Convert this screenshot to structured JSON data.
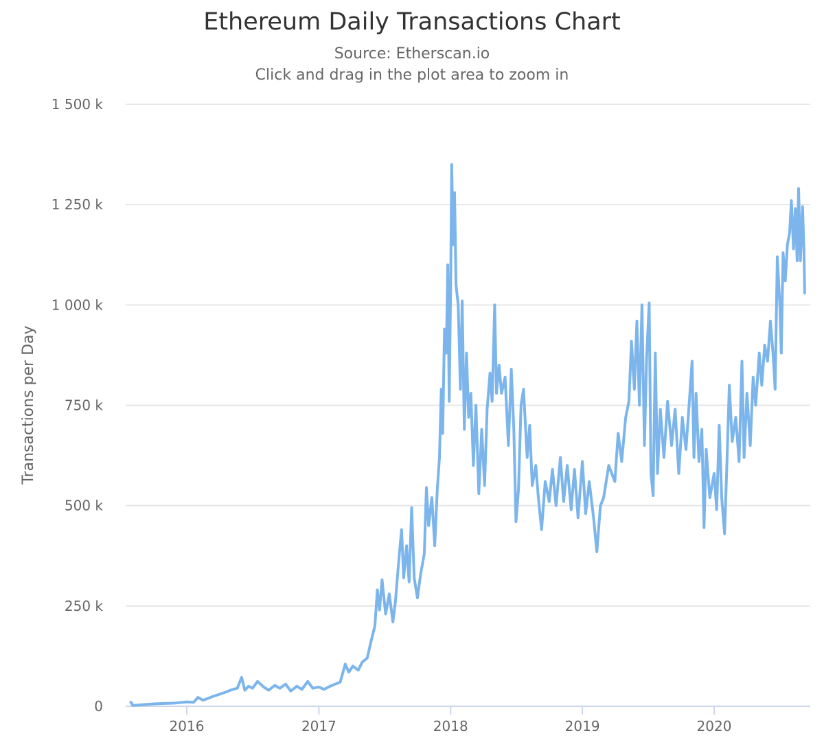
{
  "chart_data": {
    "type": "line",
    "title": "Ethereum Daily Transactions Chart",
    "subtitle": "Source: Etherscan.io",
    "subtitle2": "Click and drag in the plot area to zoom in",
    "xlabel": "",
    "ylabel": "Transactions per Day",
    "ylim": [
      0,
      1500
    ],
    "xlim": [
      "2015-07-30",
      "2020-09-08"
    ],
    "y_ticks": [
      0,
      250,
      500,
      750,
      1000,
      1250,
      1500
    ],
    "y_tick_labels": [
      "0",
      "250 k",
      "500 k",
      "750 k",
      "1 000 k",
      "1 250 k",
      "1 500 k"
    ],
    "x_ticks": [
      "2016-01-01",
      "2017-01-01",
      "2018-01-01",
      "2019-01-01",
      "2020-01-01"
    ],
    "x_tick_labels": [
      "2016",
      "2017",
      "2018",
      "2019",
      "2020"
    ],
    "grid": "horizontal",
    "legend": "none",
    "line_color": "#7cb5ec",
    "series": [
      {
        "points": [
          [
            "2015-07-30",
            10
          ],
          [
            "2015-08-05",
            2
          ],
          [
            "2015-09-01",
            4
          ],
          [
            "2015-10-01",
            6
          ],
          [
            "2015-11-01",
            7
          ],
          [
            "2015-12-01",
            8
          ],
          [
            "2016-01-01",
            11
          ],
          [
            "2016-01-20",
            10
          ],
          [
            "2016-02-01",
            22
          ],
          [
            "2016-02-15",
            15
          ],
          [
            "2016-03-01",
            20
          ],
          [
            "2016-03-15",
            25
          ],
          [
            "2016-04-01",
            30
          ],
          [
            "2016-04-20",
            36
          ],
          [
            "2016-05-01",
            40
          ],
          [
            "2016-05-20",
            45
          ],
          [
            "2016-06-01",
            72
          ],
          [
            "2016-06-10",
            40
          ],
          [
            "2016-06-20",
            50
          ],
          [
            "2016-07-01",
            45
          ],
          [
            "2016-07-15",
            62
          ],
          [
            "2016-08-01",
            48
          ],
          [
            "2016-08-15",
            40
          ],
          [
            "2016-09-01",
            52
          ],
          [
            "2016-09-15",
            45
          ],
          [
            "2016-10-01",
            55
          ],
          [
            "2016-10-15",
            38
          ],
          [
            "2016-11-01",
            50
          ],
          [
            "2016-11-15",
            42
          ],
          [
            "2016-12-01",
            62
          ],
          [
            "2016-12-15",
            45
          ],
          [
            "2017-01-01",
            48
          ],
          [
            "2017-01-15",
            42
          ],
          [
            "2017-02-01",
            50
          ],
          [
            "2017-02-15",
            55
          ],
          [
            "2017-03-01",
            60
          ],
          [
            "2017-03-15",
            105
          ],
          [
            "2017-03-25",
            85
          ],
          [
            "2017-04-05",
            100
          ],
          [
            "2017-04-20",
            90
          ],
          [
            "2017-05-01",
            110
          ],
          [
            "2017-05-15",
            120
          ],
          [
            "2017-05-25",
            160
          ],
          [
            "2017-06-05",
            200
          ],
          [
            "2017-06-12",
            290
          ],
          [
            "2017-06-18",
            240
          ],
          [
            "2017-06-25",
            315
          ],
          [
            "2017-07-05",
            230
          ],
          [
            "2017-07-15",
            280
          ],
          [
            "2017-07-25",
            210
          ],
          [
            "2017-08-01",
            260
          ],
          [
            "2017-08-10",
            360
          ],
          [
            "2017-08-18",
            440
          ],
          [
            "2017-08-24",
            320
          ],
          [
            "2017-09-01",
            400
          ],
          [
            "2017-09-08",
            310
          ],
          [
            "2017-09-15",
            495
          ],
          [
            "2017-09-22",
            320
          ],
          [
            "2017-10-01",
            270
          ],
          [
            "2017-10-10",
            330
          ],
          [
            "2017-10-20",
            380
          ],
          [
            "2017-10-26",
            545
          ],
          [
            "2017-11-01",
            450
          ],
          [
            "2017-11-10",
            520
          ],
          [
            "2017-11-18",
            400
          ],
          [
            "2017-11-25",
            540
          ],
          [
            "2017-12-01",
            620
          ],
          [
            "2017-12-06",
            790
          ],
          [
            "2017-12-10",
            680
          ],
          [
            "2017-12-15",
            940
          ],
          [
            "2017-12-20",
            880
          ],
          [
            "2017-12-24",
            1100
          ],
          [
            "2017-12-28",
            760
          ],
          [
            "2018-01-01",
            1050
          ],
          [
            "2018-01-04",
            1350
          ],
          [
            "2018-01-08",
            1150
          ],
          [
            "2018-01-12",
            1280
          ],
          [
            "2018-01-16",
            1050
          ],
          [
            "2018-01-22",
            1000
          ],
          [
            "2018-01-28",
            790
          ],
          [
            "2018-02-02",
            1010
          ],
          [
            "2018-02-08",
            690
          ],
          [
            "2018-02-14",
            880
          ],
          [
            "2018-02-20",
            720
          ],
          [
            "2018-02-26",
            780
          ],
          [
            "2018-03-05",
            600
          ],
          [
            "2018-03-12",
            750
          ],
          [
            "2018-03-20",
            530
          ],
          [
            "2018-03-28",
            690
          ],
          [
            "2018-04-05",
            550
          ],
          [
            "2018-04-12",
            740
          ],
          [
            "2018-04-20",
            830
          ],
          [
            "2018-04-26",
            760
          ],
          [
            "2018-05-03",
            1000
          ],
          [
            "2018-05-08",
            780
          ],
          [
            "2018-05-15",
            850
          ],
          [
            "2018-05-22",
            780
          ],
          [
            "2018-06-01",
            820
          ],
          [
            "2018-06-10",
            650
          ],
          [
            "2018-06-18",
            840
          ],
          [
            "2018-06-25",
            690
          ],
          [
            "2018-07-01",
            460
          ],
          [
            "2018-07-08",
            540
          ],
          [
            "2018-07-15",
            750
          ],
          [
            "2018-07-22",
            790
          ],
          [
            "2018-08-01",
            620
          ],
          [
            "2018-08-08",
            700
          ],
          [
            "2018-08-15",
            550
          ],
          [
            "2018-08-25",
            600
          ],
          [
            "2018-09-01",
            520
          ],
          [
            "2018-09-10",
            440
          ],
          [
            "2018-09-20",
            560
          ],
          [
            "2018-10-01",
            510
          ],
          [
            "2018-10-10",
            590
          ],
          [
            "2018-10-20",
            500
          ],
          [
            "2018-11-01",
            620
          ],
          [
            "2018-11-10",
            510
          ],
          [
            "2018-11-20",
            600
          ],
          [
            "2018-12-01",
            490
          ],
          [
            "2018-12-10",
            590
          ],
          [
            "2018-12-20",
            470
          ],
          [
            "2019-01-01",
            610
          ],
          [
            "2019-01-10",
            480
          ],
          [
            "2019-01-20",
            560
          ],
          [
            "2019-02-01",
            470
          ],
          [
            "2019-02-10",
            385
          ],
          [
            "2019-02-20",
            500
          ],
          [
            "2019-03-01",
            520
          ],
          [
            "2019-03-15",
            600
          ],
          [
            "2019-04-01",
            560
          ],
          [
            "2019-04-10",
            680
          ],
          [
            "2019-04-20",
            610
          ],
          [
            "2019-05-01",
            720
          ],
          [
            "2019-05-10",
            760
          ],
          [
            "2019-05-17",
            910
          ],
          [
            "2019-05-25",
            790
          ],
          [
            "2019-06-01",
            960
          ],
          [
            "2019-06-08",
            750
          ],
          [
            "2019-06-15",
            1000
          ],
          [
            "2019-06-22",
            650
          ],
          [
            "2019-06-28",
            870
          ],
          [
            "2019-07-05",
            1005
          ],
          [
            "2019-07-10",
            580
          ],
          [
            "2019-07-16",
            525
          ],
          [
            "2019-07-22",
            880
          ],
          [
            "2019-07-28",
            580
          ],
          [
            "2019-08-05",
            740
          ],
          [
            "2019-08-15",
            620
          ],
          [
            "2019-08-25",
            760
          ],
          [
            "2019-09-05",
            650
          ],
          [
            "2019-09-15",
            740
          ],
          [
            "2019-09-25",
            580
          ],
          [
            "2019-10-05",
            720
          ],
          [
            "2019-10-15",
            640
          ],
          [
            "2019-10-22",
            730
          ],
          [
            "2019-11-01",
            860
          ],
          [
            "2019-11-06",
            620
          ],
          [
            "2019-11-12",
            780
          ],
          [
            "2019-11-20",
            610
          ],
          [
            "2019-11-28",
            690
          ],
          [
            "2019-12-04",
            445
          ],
          [
            "2019-12-10",
            640
          ],
          [
            "2019-12-20",
            520
          ],
          [
            "2020-01-01",
            580
          ],
          [
            "2020-01-08",
            490
          ],
          [
            "2020-01-15",
            700
          ],
          [
            "2020-01-22",
            520
          ],
          [
            "2020-01-30",
            430
          ],
          [
            "2020-02-06",
            620
          ],
          [
            "2020-02-12",
            800
          ],
          [
            "2020-02-20",
            660
          ],
          [
            "2020-03-01",
            720
          ],
          [
            "2020-03-10",
            610
          ],
          [
            "2020-03-18",
            860
          ],
          [
            "2020-03-24",
            620
          ],
          [
            "2020-04-01",
            780
          ],
          [
            "2020-04-10",
            650
          ],
          [
            "2020-04-18",
            820
          ],
          [
            "2020-04-25",
            750
          ],
          [
            "2020-05-05",
            880
          ],
          [
            "2020-05-12",
            800
          ],
          [
            "2020-05-20",
            900
          ],
          [
            "2020-05-28",
            860
          ],
          [
            "2020-06-05",
            960
          ],
          [
            "2020-06-12",
            880
          ],
          [
            "2020-06-18",
            790
          ],
          [
            "2020-06-24",
            1120
          ],
          [
            "2020-07-01",
            1000
          ],
          [
            "2020-07-05",
            880
          ],
          [
            "2020-07-10",
            1130
          ],
          [
            "2020-07-16",
            1060
          ],
          [
            "2020-07-22",
            1150
          ],
          [
            "2020-07-28",
            1180
          ],
          [
            "2020-08-02",
            1260
          ],
          [
            "2020-08-08",
            1140
          ],
          [
            "2020-08-13",
            1240
          ],
          [
            "2020-08-18",
            1110
          ],
          [
            "2020-08-22",
            1290
          ],
          [
            "2020-08-27",
            1110
          ],
          [
            "2020-09-02",
            1245
          ],
          [
            "2020-09-06",
            1130
          ],
          [
            "2020-09-08",
            1030
          ]
        ]
      }
    ]
  }
}
